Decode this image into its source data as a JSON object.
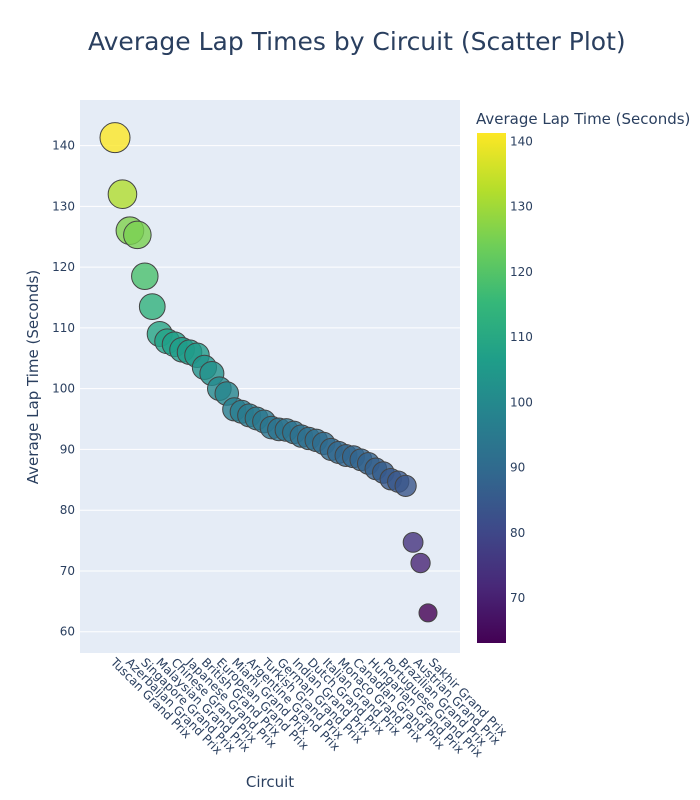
{
  "chart_data": {
    "type": "scatter",
    "title": "Average Lap Times by Circuit (Scatter Plot)",
    "xlabel": "Circuit",
    "ylabel": "Average Lap Time (Seconds)",
    "ylim": [
      56.5,
      147.5
    ],
    "yticks": [
      60,
      70,
      80,
      90,
      100,
      110,
      120,
      130,
      140
    ],
    "grid": true,
    "x_tick_labels": [
      "Tuscan Grand Prix",
      "Azerbaijan Grand Prix",
      "Singapore Grand Prix",
      "Malaysian Grand Prix",
      "Chinese Grand Prix",
      "Japanese Grand Prix",
      "British Grand Prix",
      "European Grand Prix",
      "Miami Grand Prix",
      "Argentine Grand Prix",
      "Turkish Grand Prix",
      "German Grand Prix",
      "Indian Grand Prix",
      "Dutch Grand Prix",
      "Italian Grand Prix",
      "Monaco Grand Prix",
      "Canadian Grand Prix",
      "Hungarian Grand Prix",
      "Portuguese Grand Prix",
      "Brazilian Grand Prix",
      "Austrian Grand Prix",
      "Sakhir Grand Prix"
    ],
    "y": [
      141.3,
      132.0,
      126.0,
      125.3,
      118.5,
      113.5,
      109.0,
      107.8,
      107.3,
      106.4,
      106.0,
      105.5,
      103.5,
      102.5,
      100.0,
      99.2,
      96.6,
      96.2,
      95.6,
      95.1,
      94.6,
      93.6,
      93.3,
      93.2,
      92.8,
      92.2,
      91.8,
      91.5,
      91.0,
      90.0,
      89.5,
      89.0,
      88.8,
      88.3,
      87.7,
      86.8,
      86.2,
      85.1,
      84.7,
      84.0,
      74.7,
      71.3,
      63.1
    ],
    "colorscale": "Viridis",
    "colorbar": {
      "title": "Average Lap Time (Seconds)",
      "cmin": 63.1,
      "cmax": 141.3,
      "ticks": [
        70,
        80,
        90,
        100,
        110,
        120,
        130,
        140
      ],
      "colors": [
        "#440154",
        "#482878",
        "#3e4989",
        "#31688e",
        "#26828e",
        "#1f9e89",
        "#35b779",
        "#6ece58",
        "#b5de2b",
        "#fde725"
      ]
    }
  }
}
